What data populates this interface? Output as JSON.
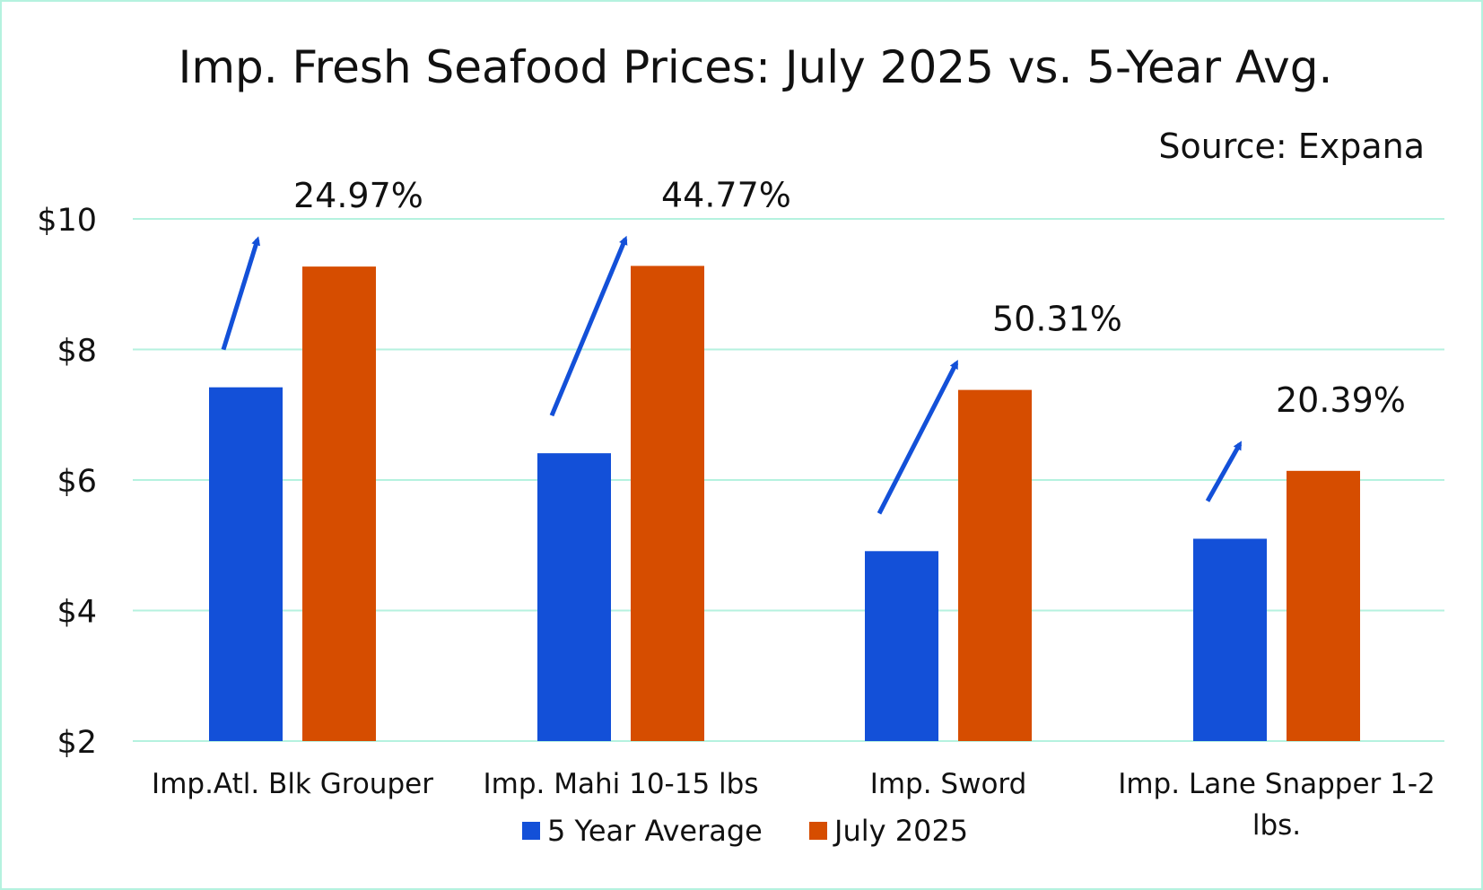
{
  "colors": {
    "five_year": "#1350d8",
    "july": "#d64d00",
    "grid": "#b5f2df",
    "arrow": "#1350d8"
  },
  "chart_data": {
    "type": "bar",
    "title": "Imp. Fresh Seafood Prices: July 2025 vs. 5-Year Avg.",
    "source": "Source: Expana",
    "xlabel": "",
    "ylabel": "",
    "ylim": [
      2,
      10
    ],
    "yticks": [
      {
        "value": 2,
        "label": "$2"
      },
      {
        "value": 4,
        "label": "$4"
      },
      {
        "value": 6,
        "label": "$6"
      },
      {
        "value": 8,
        "label": "$8"
      },
      {
        "value": 10,
        "label": "$10"
      }
    ],
    "grid": true,
    "legend_position": "bottom-center",
    "categories": [
      [
        "Imp.Atl. Blk Grouper"
      ],
      [
        "Imp. Mahi 10-15 lbs"
      ],
      [
        "Imp. Sword"
      ],
      [
        "Imp. Lane Snapper 1-2",
        "lbs."
      ]
    ],
    "series": [
      {
        "name": "5 Year Average",
        "values": [
          7.42,
          6.41,
          4.91,
          5.1
        ]
      },
      {
        "name": "July 2025",
        "values": [
          9.27,
          9.28,
          7.38,
          6.14
        ]
      }
    ],
    "annotations": [
      "24.97%",
      "44.77%",
      "50.31%",
      "20.39%"
    ]
  }
}
